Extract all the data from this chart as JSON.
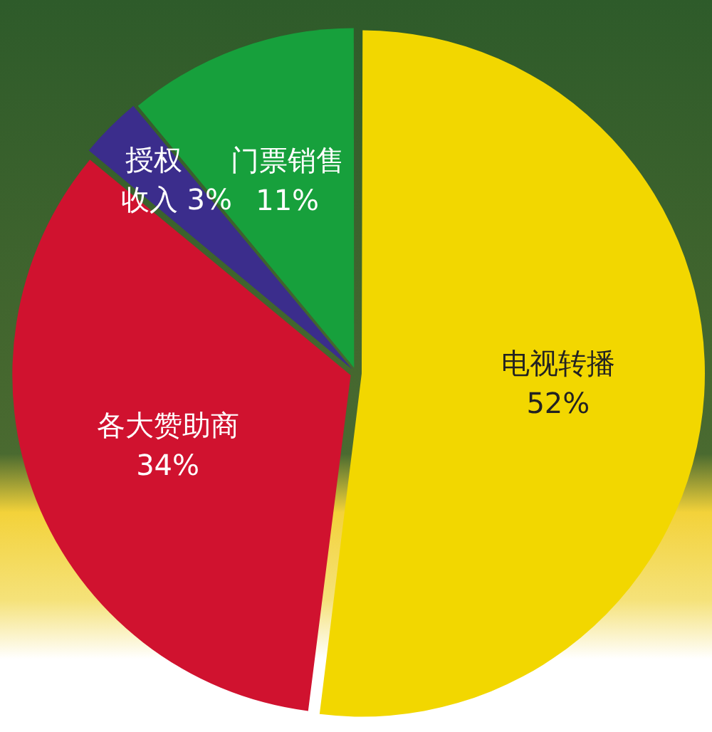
{
  "chart_data": {
    "type": "pie",
    "categories": [
      "电视转播",
      "各大赞助商",
      "授权收入",
      "门票销售"
    ],
    "values": [
      52,
      34,
      3,
      11
    ],
    "colors": [
      "#f2d700",
      "#d0122f",
      "#3b2d8c",
      "#17a03c"
    ],
    "value_labels": [
      "52%",
      "34%",
      "3%",
      "11%"
    ],
    "legend": false
  }
}
